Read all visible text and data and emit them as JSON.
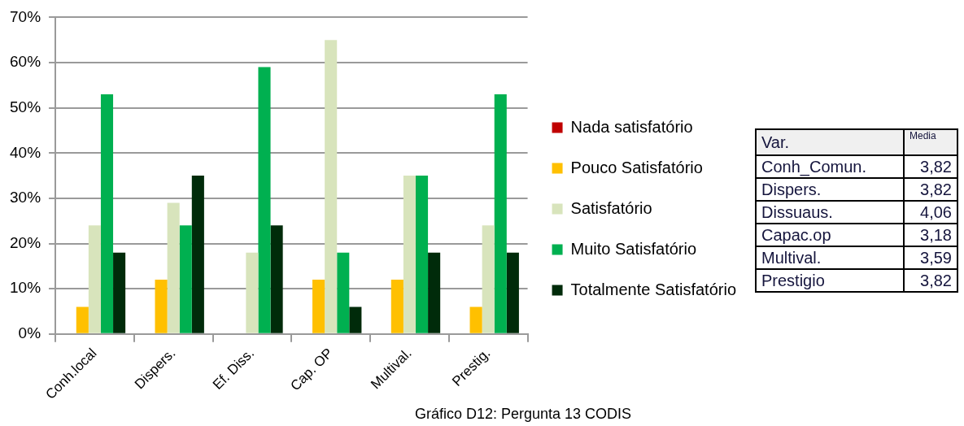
{
  "chart_data": [
    {
      "type": "bar",
      "categories": [
        "Conh.local",
        "Dispers.",
        "Ef. Diss.",
        "Cap. OP",
        "Multival.",
        "Prestig."
      ],
      "series": [
        {
          "name": "Nada satisfatório",
          "color": "#c00000",
          "values": [
            0,
            0,
            0,
            0,
            0,
            0
          ]
        },
        {
          "name": "Pouco Satisfatório",
          "color": "#ffc000",
          "values": [
            6,
            12,
            0,
            12,
            12,
            6
          ]
        },
        {
          "name": "Satisfatório",
          "color": "#d8e4bc",
          "values": [
            24,
            29,
            18,
            65,
            35,
            24
          ]
        },
        {
          "name": "Muito Satisfatório",
          "color": "#00b050",
          "values": [
            53,
            24,
            59,
            18,
            35,
            53
          ]
        },
        {
          "name": "Totalmente Satisfatório",
          "color": "#002b0a",
          "values": [
            18,
            35,
            24,
            6,
            18,
            18
          ]
        }
      ],
      "ylim": [
        0,
        70
      ],
      "yticks": [
        {
          "value": 0,
          "label": "0%"
        },
        {
          "value": 10,
          "label": "10%"
        },
        {
          "value": 20,
          "label": "20%"
        },
        {
          "value": 30,
          "label": "30%"
        },
        {
          "value": 40,
          "label": "40%"
        },
        {
          "value": 50,
          "label": "50%"
        },
        {
          "value": 60,
          "label": "60%"
        },
        {
          "value": 70,
          "label": "70%"
        }
      ],
      "grid": "y",
      "legend": "right",
      "annotations": [
        "Gráfico D12: Pergunta 13 CODIS"
      ]
    },
    {
      "type": "other",
      "xlabel": "Var.",
      "ylabel": "Media",
      "categories": [
        "Conh_Comun.",
        "Dispers.",
        "Dissuaus.",
        "Capac.op",
        "Multival.",
        "Prestigio"
      ],
      "value_labels": [
        "3,82",
        "3,82",
        "4,06",
        "3,18",
        "3,59",
        "3,82"
      ]
    }
  ]
}
